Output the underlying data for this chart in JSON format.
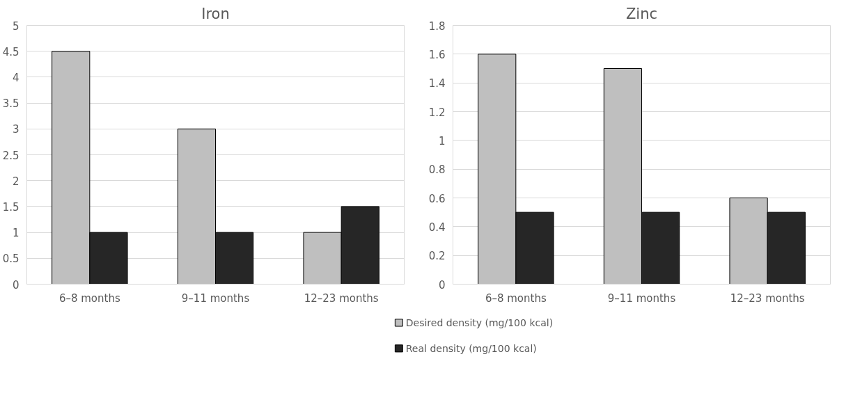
{
  "chart_data": [
    {
      "type": "bar",
      "title": "Iron",
      "categories": [
        "6–8 months",
        "9–11 months",
        "12–23 months"
      ],
      "series": [
        {
          "name": "Desired density (mg/100 kcal)",
          "color": "#bfbfbf",
          "values": [
            4.5,
            3,
            1
          ]
        },
        {
          "name": "Real density (mg/100 kcal)",
          "color": "#262626",
          "values": [
            1,
            1,
            1.5
          ]
        }
      ],
      "ylim": [
        0,
        5
      ],
      "yticks": [
        0,
        0.5,
        1,
        1.5,
        2,
        2.5,
        3,
        3.5,
        4,
        4.5,
        5
      ],
      "grid": "y",
      "legend": "bottom"
    },
    {
      "type": "bar",
      "title": "Zinc",
      "categories": [
        "6–8 months",
        "9–11 months",
        "12–23 months"
      ],
      "series": [
        {
          "name": "Desired density (mg/100 kcal)",
          "color": "#bfbfbf",
          "values": [
            1.6,
            1.5,
            0.6
          ]
        },
        {
          "name": "Real density (mg/100 kcal)",
          "color": "#262626",
          "values": [
            0.5,
            0.5,
            0.5
          ]
        }
      ],
      "ylim": [
        0,
        1.8
      ],
      "yticks": [
        0,
        0.2,
        0.4,
        0.6,
        0.8,
        1,
        1.2,
        1.4,
        1.6,
        1.8
      ],
      "grid": "y",
      "legend": "bottom"
    }
  ]
}
